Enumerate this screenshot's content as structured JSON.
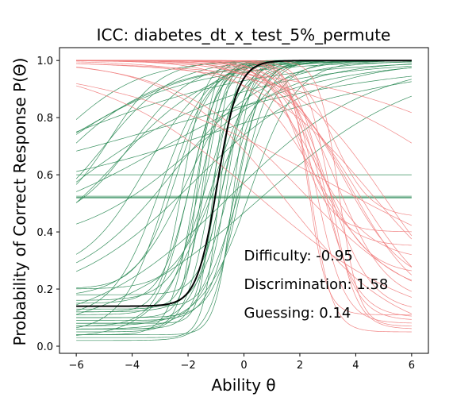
{
  "chart_data": {
    "type": "line",
    "title": "ICC: diabetes_dt_x_test_5%_permute",
    "xlabel": "Ability θ",
    "ylabel": "Probability of Correct Response P(Θ)",
    "xlim": [
      -6.6,
      6.6
    ],
    "ylim": [
      -0.025,
      1.045
    ],
    "xticks": [
      -6,
      -4,
      -2,
      0,
      2,
      4,
      6
    ],
    "yticks": [
      0.0,
      0.2,
      0.4,
      0.6,
      0.8,
      1.0
    ],
    "x_tick_labels": [
      "−6",
      "−4",
      "−2",
      "0",
      "2",
      "4",
      "6"
    ],
    "y_tick_labels": [
      "0.0",
      "0.2",
      "0.4",
      "0.6",
      "0.8",
      "1.0"
    ],
    "grid": false,
    "annotations": [
      {
        "text": "Difficulty: -0.95",
        "x": 0.0,
        "y": 0.3
      },
      {
        "text": "Discrimination: 1.58",
        "x": 0.0,
        "y": 0.2
      },
      {
        "text": "Guessing: 0.14",
        "x": 0.0,
        "y": 0.1
      }
    ],
    "colors": {
      "positive": "#2e8b57",
      "negative": "#f08080",
      "main": "#000000"
    },
    "main_curve": {
      "difficulty": -0.95,
      "discrimination": 1.58,
      "guessing": 0.14
    },
    "item_curves": [
      {
        "sign": "pos",
        "b": -1.2,
        "a": 2.2,
        "c": 0.05
      },
      {
        "sign": "pos",
        "b": -1.0,
        "a": 2.6,
        "c": 0.06
      },
      {
        "sign": "pos",
        "b": -0.8,
        "a": 1.9,
        "c": 0.08
      },
      {
        "sign": "pos",
        "b": -1.5,
        "a": 3.0,
        "c": 0.1
      },
      {
        "sign": "pos",
        "b": -0.5,
        "a": 1.7,
        "c": 0.12
      },
      {
        "sign": "pos",
        "b": -1.8,
        "a": 2.4,
        "c": 0.04
      },
      {
        "sign": "pos",
        "b": -0.6,
        "a": 2.8,
        "c": 0.14
      },
      {
        "sign": "pos",
        "b": -2.0,
        "a": 1.8,
        "c": 0.07
      },
      {
        "sign": "pos",
        "b": -0.3,
        "a": 2.1,
        "c": 0.09
      },
      {
        "sign": "pos",
        "b": -1.3,
        "a": 1.6,
        "c": 0.16
      },
      {
        "sign": "pos",
        "b": -0.9,
        "a": 3.5,
        "c": 0.03
      },
      {
        "sign": "pos",
        "b": -1.6,
        "a": 2.0,
        "c": 0.11
      },
      {
        "sign": "pos",
        "b": -2.4,
        "a": 1.5,
        "c": 0.2
      },
      {
        "sign": "pos",
        "b": -0.2,
        "a": 1.4,
        "c": 0.06
      },
      {
        "sign": "pos",
        "b": -1.1,
        "a": 4.0,
        "c": 0.08
      },
      {
        "sign": "pos",
        "b": -2.8,
        "a": 1.3,
        "c": 0.05
      },
      {
        "sign": "pos",
        "b": -0.7,
        "a": 2.3,
        "c": 0.18
      },
      {
        "sign": "pos",
        "b": -1.4,
        "a": 2.7,
        "c": 0.13
      },
      {
        "sign": "pos",
        "b": -3.0,
        "a": 1.2,
        "c": 0.1
      },
      {
        "sign": "pos",
        "b": -0.4,
        "a": 3.2,
        "c": 0.04
      },
      {
        "sign": "pos",
        "b": -1.9,
        "a": 1.9,
        "c": 0.15
      },
      {
        "sign": "pos",
        "b": 0.2,
        "a": 1.2,
        "c": 0.07
      },
      {
        "sign": "pos",
        "b": -2.2,
        "a": 2.5,
        "c": 0.12
      },
      {
        "sign": "pos",
        "b": -1.0,
        "a": 1.4,
        "c": 0.2
      },
      {
        "sign": "pos",
        "b": -1.7,
        "a": 3.3,
        "c": 0.06
      },
      {
        "sign": "pos",
        "b": -3.5,
        "a": 0.9,
        "c": 0.25
      },
      {
        "sign": "pos",
        "b": -4.5,
        "a": 0.6,
        "c": 0.3
      },
      {
        "sign": "pos",
        "b": -5.0,
        "a": 0.8,
        "c": 0.4
      },
      {
        "sign": "pos",
        "b": -2.0,
        "a": 0.5,
        "c": 0.35
      },
      {
        "sign": "pos",
        "b": -4.0,
        "a": 0.9,
        "c": 0.42
      },
      {
        "sign": "pos",
        "b": -3.0,
        "a": 0.35,
        "c": 0.38
      },
      {
        "sign": "pos",
        "b": -5.5,
        "a": 0.5,
        "c": 0.55
      },
      {
        "sign": "pos",
        "b": -6.5,
        "a": 0.7,
        "c": 0.5
      },
      {
        "sign": "pos",
        "b": -4.8,
        "a": 1.1,
        "c": 0.45
      },
      {
        "sign": "pos",
        "b": -2.6,
        "a": 0.6,
        "c": 0.2
      },
      {
        "sign": "pos",
        "b": -1.8,
        "a": 0.45,
        "c": 0.15
      },
      {
        "sign": "pos",
        "b": -0.5,
        "a": 0.4,
        "c": 0.05
      },
      {
        "sign": "pos",
        "b": 0.5,
        "a": 0.35,
        "c": 0.02
      },
      {
        "sign": "pos",
        "b": -6.0,
        "a": 0.3,
        "c": 0.5
      },
      {
        "sign": "pos",
        "b": -1.0,
        "a": 0.25,
        "c": 0.5
      },
      {
        "sign": "pos",
        "b": -3.5,
        "a": 0.22,
        "c": 0.5
      },
      {
        "sign": "pos",
        "b": -2.0,
        "a": 1.0,
        "c": 0.17
      },
      {
        "sign": "pos",
        "b": -1.2,
        "a": 1.0,
        "c": 0.03
      },
      {
        "sign": "pos",
        "b": -0.1,
        "a": 2.0,
        "c": 0.1
      },
      {
        "sign": "pos",
        "b": -0.3,
        "a": 2.2,
        "c": 0.02
      },
      {
        "sign": "flat",
        "value": 0.525
      },
      {
        "sign": "flat",
        "value": 0.52
      },
      {
        "sign": "flat",
        "value": 0.6
      },
      {
        "sign": "pos",
        "b": -8.0,
        "a": 0.45,
        "c": 0.0
      },
      {
        "sign": "pos",
        "b": -9.0,
        "a": 0.35,
        "c": 0.0
      },
      {
        "sign": "pos",
        "b": -7.0,
        "a": 0.3,
        "c": 0.0
      },
      {
        "sign": "neg",
        "b": 2.6,
        "a": 2.0,
        "c": 0.08
      },
      {
        "sign": "neg",
        "b": 2.8,
        "a": 1.6,
        "c": 0.1
      },
      {
        "sign": "neg",
        "b": 3.0,
        "a": 1.3,
        "c": 0.12
      },
      {
        "sign": "neg",
        "b": 2.4,
        "a": 2.6,
        "c": 0.05
      },
      {
        "sign": "neg",
        "b": 3.3,
        "a": 1.1,
        "c": 0.15
      },
      {
        "sign": "neg",
        "b": 2.9,
        "a": 1.8,
        "c": 0.09
      },
      {
        "sign": "neg",
        "b": 3.5,
        "a": 0.9,
        "c": 0.2
      },
      {
        "sign": "neg",
        "b": 2.7,
        "a": 1.2,
        "c": 0.25
      },
      {
        "sign": "neg",
        "b": 3.1,
        "a": 2.2,
        "c": 0.06
      },
      {
        "sign": "neg",
        "b": 2.5,
        "a": 1.0,
        "c": 0.3
      },
      {
        "sign": "neg",
        "b": 3.8,
        "a": 0.8,
        "c": 0.12
      },
      {
        "sign": "neg",
        "b": 2.2,
        "a": 1.4,
        "c": 0.35
      },
      {
        "sign": "neg",
        "b": 4.0,
        "a": 0.7,
        "c": 0.1
      },
      {
        "sign": "neg",
        "b": 2.0,
        "a": 1.7,
        "c": 0.4
      },
      {
        "sign": "neg",
        "b": 3.2,
        "a": 1.5,
        "c": 0.45
      },
      {
        "sign": "neg",
        "b": 2.6,
        "a": 0.8,
        "c": 0.18
      },
      {
        "sign": "neg",
        "b": 1.5,
        "a": 0.5,
        "c": 0.02
      },
      {
        "sign": "neg",
        "b": 0.5,
        "a": 0.35,
        "c": 0.05
      },
      {
        "sign": "neg",
        "b": 2.0,
        "a": 0.45,
        "c": 0.1
      },
      {
        "sign": "neg",
        "b": 4.5,
        "a": 0.5,
        "c": 0.08
      },
      {
        "sign": "neg",
        "b": 5.0,
        "a": 0.6,
        "c": 0.05
      },
      {
        "sign": "neg",
        "b": 9.0,
        "a": 0.3,
        "c": 0.0
      },
      {
        "sign": "neg",
        "b": 12.0,
        "a": 0.25,
        "c": 0.0
      },
      {
        "sign": "neg",
        "b": 3.0,
        "a": 0.25,
        "c": 0.15
      },
      {
        "sign": "neg",
        "b": 3.4,
        "a": 2.8,
        "c": 0.07
      },
      {
        "sign": "neg",
        "b": 2.3,
        "a": 3.0,
        "c": 0.11
      }
    ]
  }
}
